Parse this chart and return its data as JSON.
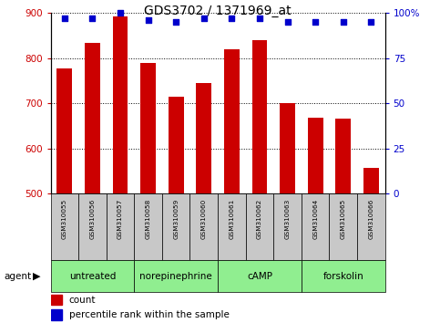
{
  "title": "GDS3702 / 1371969_at",
  "samples": [
    "GSM310055",
    "GSM310056",
    "GSM310057",
    "GSM310058",
    "GSM310059",
    "GSM310060",
    "GSM310061",
    "GSM310062",
    "GSM310063",
    "GSM310064",
    "GSM310065",
    "GSM310066"
  ],
  "counts": [
    778,
    833,
    893,
    790,
    715,
    745,
    820,
    840,
    700,
    668,
    667,
    558
  ],
  "percentiles": [
    97,
    97,
    100,
    96,
    95,
    97,
    97,
    97,
    95,
    95,
    95,
    95
  ],
  "bar_color": "#cc0000",
  "dot_color": "#0000cc",
  "ylim_left": [
    500,
    900
  ],
  "ylim_right": [
    0,
    100
  ],
  "yticks_left": [
    500,
    600,
    700,
    800,
    900
  ],
  "yticks_right": [
    0,
    25,
    50,
    75,
    100
  ],
  "yticklabels_right": [
    "0",
    "25",
    "50",
    "75",
    "100%"
  ],
  "groups": [
    {
      "label": "untreated",
      "start": 0,
      "end": 2,
      "color": "#90ee90"
    },
    {
      "label": "norepinephrine",
      "start": 3,
      "end": 5,
      "color": "#90ee90"
    },
    {
      "label": "cAMP",
      "start": 6,
      "end": 8,
      "color": "#90ee90"
    },
    {
      "label": "forskolin",
      "start": 9,
      "end": 11,
      "color": "#90ee90"
    }
  ],
  "agent_label": "agent",
  "legend_count_label": "count",
  "legend_percentile_label": "percentile rank within the sample",
  "tick_label_color_left": "#cc0000",
  "tick_label_color_right": "#0000cc",
  "title_fontsize": 10,
  "bar_width": 0.55,
  "sample_bg_color": "#c8c8c8",
  "plot_bg_color": "#ffffff"
}
